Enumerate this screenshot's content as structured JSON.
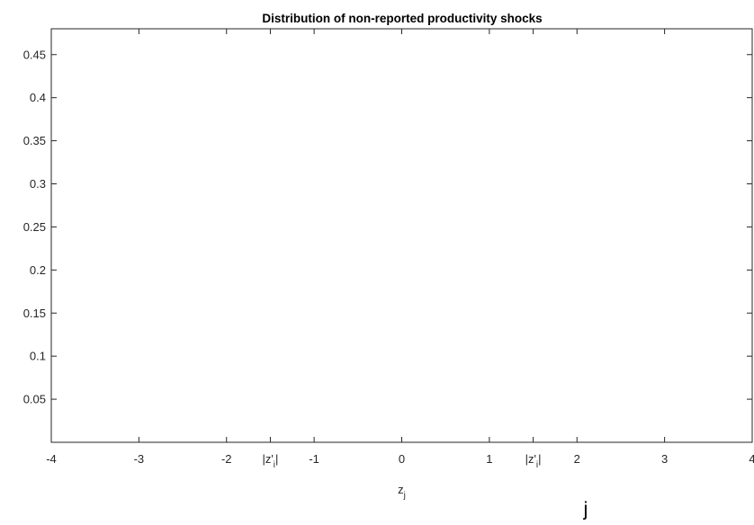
{
  "chart_data": {
    "type": "line",
    "title": "Distribution of non-reported productivity shocks",
    "xlabel": {
      "base": "z",
      "sub": "j"
    },
    "ylabel": "",
    "xlim": [
      -4,
      4
    ],
    "ylim": [
      0,
      0.48
    ],
    "grid": false,
    "series": [],
    "x_ticks": [
      {
        "value": -4,
        "label": "-4"
      },
      {
        "value": -3,
        "label": "-3"
      },
      {
        "value": -2,
        "label": "-2"
      },
      {
        "value": -1.5,
        "label": "|z'",
        "sub": "i",
        "suffix": "|"
      },
      {
        "value": -1,
        "label": "-1"
      },
      {
        "value": 0,
        "label": "0"
      },
      {
        "value": 1,
        "label": "1"
      },
      {
        "value": 1.5,
        "label": "|z'",
        "sub": "i",
        "suffix": "|"
      },
      {
        "value": 2,
        "label": "2"
      },
      {
        "value": 3,
        "label": "3"
      },
      {
        "value": 4,
        "label": "4"
      }
    ],
    "y_ticks": [
      {
        "value": 0.05,
        "label": "0.05"
      },
      {
        "value": 0.1,
        "label": "0.1"
      },
      {
        "value": 0.15,
        "label": "0.15"
      },
      {
        "value": 0.2,
        "label": "0.2"
      },
      {
        "value": 0.25,
        "label": "0.25"
      },
      {
        "value": 0.3,
        "label": "0.3"
      },
      {
        "value": 0.35,
        "label": "0.35"
      },
      {
        "value": 0.4,
        "label": "0.4"
      },
      {
        "value": 0.45,
        "label": "0.45"
      }
    ],
    "annotations": [
      {
        "text": "j",
        "x": 2.1,
        "y": -0.085
      }
    ],
    "colors": {
      "axis": "#262626",
      "background": "#ffffff"
    }
  }
}
